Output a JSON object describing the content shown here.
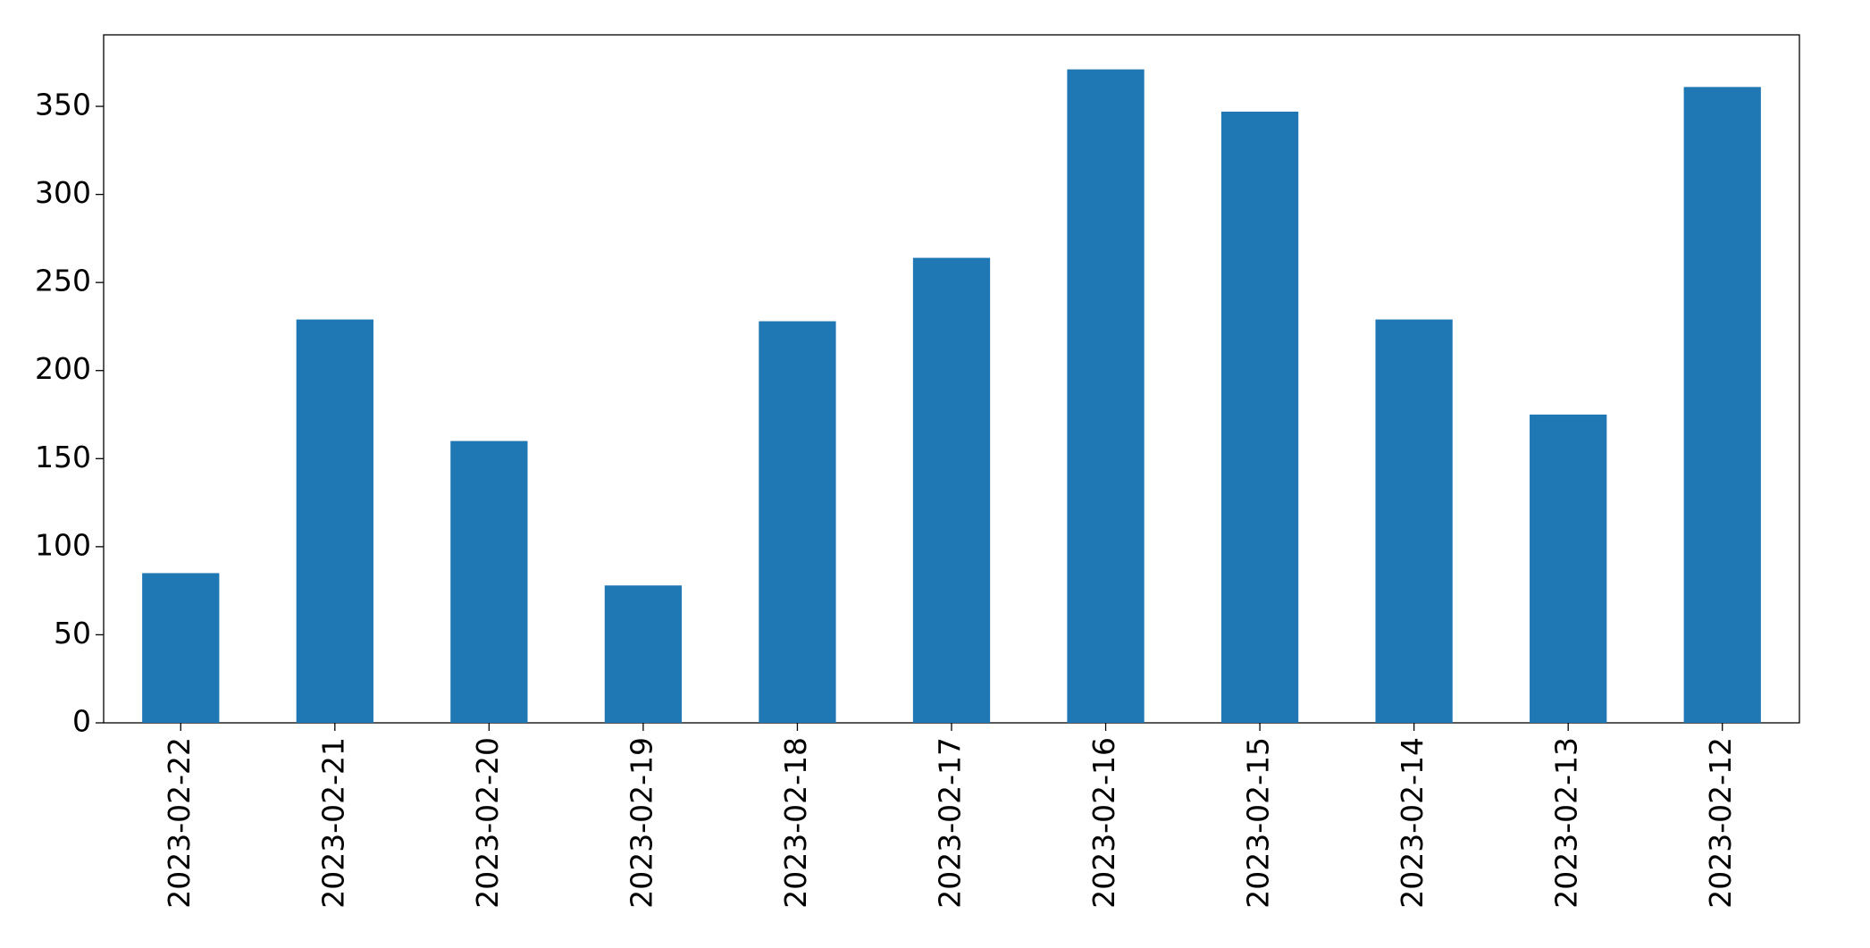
{
  "chart_data": {
    "type": "bar",
    "categories": [
      "2023-02-22",
      "2023-02-21",
      "2023-02-20",
      "2023-02-19",
      "2023-02-18",
      "2023-02-17",
      "2023-02-16",
      "2023-02-15",
      "2023-02-14",
      "2023-02-13",
      "2023-02-12"
    ],
    "values": [
      85,
      229,
      160,
      78,
      228,
      264,
      371,
      347,
      229,
      175,
      361
    ],
    "color": "#1f77b4",
    "ylim": [
      0,
      390.6
    ],
    "yticks": [
      0,
      50,
      100,
      150,
      200,
      250,
      300,
      350
    ],
    "grid": false
  }
}
